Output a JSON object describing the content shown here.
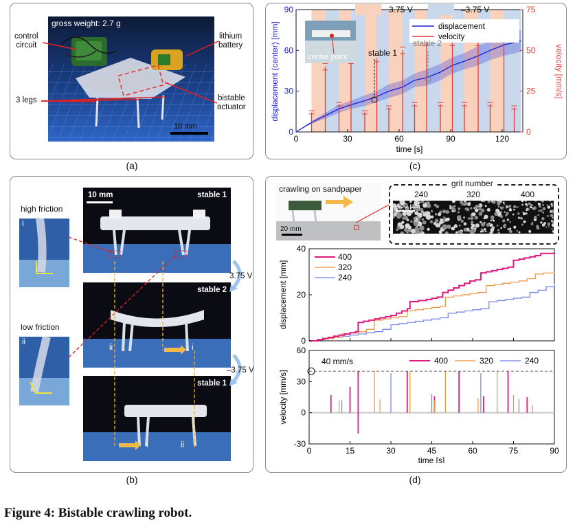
{
  "panel_a": {
    "caption": "(a)",
    "weight_label": "gross weight: 2.7 g",
    "scale_label": "10 mm",
    "callouts": {
      "control_circuit": [
        "control",
        "circuit"
      ],
      "lithium_battery": [
        "lithium",
        "battery"
      ],
      "legs": "3 legs",
      "bistable_actuator": [
        "bistable",
        "actuator"
      ]
    }
  },
  "panel_b": {
    "caption": "(b)",
    "scale_label": "10 mm",
    "state_labels": [
      "stable 1",
      "stable 2",
      "stable 1"
    ],
    "voltage_labels": [
      "3.75 V",
      "–3.75 V"
    ],
    "friction_labels": [
      "high friction",
      "low friction"
    ],
    "roman": [
      "i",
      "ii"
    ]
  },
  "panel_c": {
    "caption": "(c)",
    "band_legend": [
      "3.75 V",
      "–3.75 V"
    ],
    "inset_label": "center point",
    "annotations": [
      "stable 1",
      "stable 2"
    ],
    "colors": {
      "positive_band": "#f8d2bd",
      "negative_band": "#c9d9eb",
      "displacement": "#1c1cd6",
      "velocity": "#e43a3a"
    },
    "chart_data": {
      "type": "line",
      "xlabel": "time [s]",
      "ylabel_left": "displacement (center) [mm]",
      "ylabel_right": "velocity [mm/s]",
      "xlim": [
        0,
        132
      ],
      "ylim_left": [
        0,
        90
      ],
      "ylim_right": [
        0,
        75
      ],
      "xticks": [
        0,
        30,
        60,
        90,
        120
      ],
      "yticks_left": [
        0,
        30,
        60,
        90
      ],
      "yticks_right": [
        0,
        25,
        50,
        75
      ],
      "legend": [
        "displacement",
        "velocity"
      ],
      "bands": [
        {
          "from": 9,
          "to": 17,
          "v": "+"
        },
        {
          "from": 17,
          "to": 25,
          "v": "-"
        },
        {
          "from": 25,
          "to": 32,
          "v": "+"
        },
        {
          "from": 32,
          "to": 40,
          "v": "-"
        },
        {
          "from": 40,
          "to": 47,
          "v": "+"
        },
        {
          "from": 47,
          "to": 54,
          "v": "-"
        },
        {
          "from": 54,
          "to": 62,
          "v": "+"
        },
        {
          "from": 62,
          "to": 69,
          "v": "-"
        },
        {
          "from": 69,
          "to": 76,
          "v": "+"
        },
        {
          "from": 76,
          "to": 84,
          "v": "-"
        },
        {
          "from": 84,
          "to": 91,
          "v": "+"
        },
        {
          "from": 91,
          "to": 98,
          "v": "-"
        },
        {
          "from": 98,
          "to": 106,
          "v": "+"
        },
        {
          "from": 106,
          "to": 113,
          "v": "-"
        },
        {
          "from": 113,
          "to": 121,
          "v": "+"
        },
        {
          "from": 121,
          "to": 131,
          "v": "-"
        }
      ],
      "series": [
        {
          "name": "displacement",
          "x": [
            0,
            9,
            17,
            25,
            32,
            40,
            47,
            54,
            62,
            69,
            76,
            84,
            91,
            98,
            106,
            113,
            121,
            131
          ],
          "y": [
            0,
            7,
            12,
            17,
            20,
            23,
            26,
            30,
            33,
            38,
            40,
            44,
            49,
            52,
            56,
            60,
            64,
            67
          ],
          "band": [
            0,
            1,
            2,
            3,
            3,
            4,
            4,
            5,
            5,
            5,
            6,
            6,
            6,
            6,
            7,
            7,
            8,
            8
          ]
        },
        {
          "name": "velocity",
          "x": [
            9,
            17,
            25,
            32,
            40,
            47,
            54,
            62,
            69,
            76,
            84,
            91,
            98,
            106,
            113,
            121,
            127
          ],
          "y": [
            12,
            40,
            17,
            44,
            12,
            45,
            15,
            50,
            17,
            55,
            17,
            55,
            17,
            55,
            17,
            57,
            15
          ],
          "err": [
            1,
            2,
            1,
            2,
            1,
            2,
            1,
            2,
            1,
            2,
            1,
            2,
            1,
            2,
            1,
            2,
            1
          ]
        }
      ]
    }
  },
  "panel_d": {
    "caption": "(d)",
    "photo_label": "crawling on sandpaper",
    "photo_scale": "20 mm",
    "grit_title": "grit number",
    "grit_values": [
      "240",
      "320",
      "400"
    ],
    "micro_scale": "400 μm",
    "callout_40": "40 mm/s",
    "colors": {
      "400": "#e0197d",
      "320": "#f0913a",
      "240": "#6f7fe8"
    },
    "chart_data": [
      {
        "type": "line",
        "xlabel": "",
        "ylabel": "displacement [mm]",
        "xlim": [
          0,
          90
        ],
        "ylim": [
          0,
          40
        ],
        "yticks": [
          0,
          20,
          40
        ],
        "legend": [
          "400",
          "320",
          "240"
        ],
        "legend_position": "top-left",
        "series": [
          {
            "name": "400",
            "x": [
              0,
              3,
              5,
              7,
              9,
              11,
              13,
              15,
              17,
              18,
              20,
              22,
              24,
              26,
              28,
              30,
              32,
              34,
              36,
              37,
              40,
              43,
              45,
              47,
              49,
              51,
              53,
              55,
              57,
              59,
              61,
              63,
              65,
              67,
              69,
              71,
              73,
              75,
              77,
              79,
              81,
              83,
              85,
              90
            ],
            "y": [
              0,
              0.5,
              1,
              1.5,
              2,
              2.5,
              3,
              3.5,
              4,
              8,
              8.5,
              9,
              9.5,
              10,
              10.5,
              11,
              12,
              13,
              14,
              17,
              17.5,
              18,
              18.5,
              19,
              21,
              22,
              23,
              24,
              25,
              26,
              26.5,
              29.5,
              30,
              30.5,
              31,
              31.5,
              32,
              35,
              35.5,
              36,
              36.5,
              37,
              38,
              38.5
            ]
          },
          {
            "name": "320",
            "x": [
              0,
              3,
              6,
              9,
              12,
              15,
              18,
              21,
              24,
              27,
              30,
              33,
              36,
              39,
              42,
              45,
              48,
              50,
              53,
              56,
              59,
              62,
              65,
              68,
              71,
              74,
              77,
              80,
              83,
              86,
              90
            ],
            "y": [
              0,
              0.5,
              1,
              1.5,
              3,
              3.5,
              4,
              5,
              9,
              9.5,
              10,
              10.5,
              13,
              13.5,
              14,
              14.5,
              15,
              19,
              19.5,
              20,
              20.5,
              21,
              24,
              24.5,
              25,
              25.5,
              26,
              27,
              29,
              29.5,
              30
            ]
          },
          {
            "name": "240",
            "x": [
              0,
              3,
              6,
              9,
              12,
              15,
              18,
              21,
              24,
              27,
              30,
              33,
              36,
              39,
              42,
              45,
              48,
              51,
              54,
              57,
              60,
              63,
              66,
              69,
              72,
              75,
              78,
              81,
              84,
              87,
              90
            ],
            "y": [
              0,
              0.5,
              1,
              1.5,
              2,
              2.5,
              3,
              3.5,
              4,
              5,
              7,
              7.5,
              8,
              8.5,
              9,
              9.5,
              10,
              12,
              12.5,
              13,
              13.5,
              14,
              17,
              17.5,
              18,
              18.5,
              19,
              21,
              22,
              23.5,
              25
            ]
          }
        ]
      },
      {
        "type": "line",
        "xlabel": "time [s]",
        "ylabel": "velocity [mm/s]",
        "xlim": [
          0,
          90
        ],
        "ylim": [
          -30,
          60
        ],
        "xticks": [
          0,
          15,
          30,
          45,
          60,
          75,
          90
        ],
        "yticks": [
          -30,
          0,
          30,
          60
        ],
        "threshold": 40,
        "legend": [
          "400",
          "320",
          "240"
        ],
        "legend_position": "top-right",
        "spikes": [
          {
            "name": "400",
            "x": [
              8,
              15,
              18,
              36,
              46,
              55,
              64,
              73,
              80
            ],
            "y": [
              17,
              25,
              40,
              40,
              16,
              40,
              16,
              40,
              15
            ]
          },
          {
            "name": "320",
            "x": [
              11,
              24,
              26,
              37,
              46,
              50,
              62,
              69,
              75,
              82
            ],
            "y": [
              12,
              40,
              13,
              40,
              12,
              40,
              14,
              40,
              17,
              7
            ]
          },
          {
            "name": "240",
            "x": [
              12,
              30,
              45,
              63,
              77
            ],
            "y": [
              12,
              38,
              18,
              38,
              13
            ]
          },
          {
            "name": "400-neg",
            "x": [
              18
            ],
            "y": [
              -20
            ]
          }
        ]
      }
    ]
  },
  "figure_caption": "Figure 4: Bistable crawling robot."
}
